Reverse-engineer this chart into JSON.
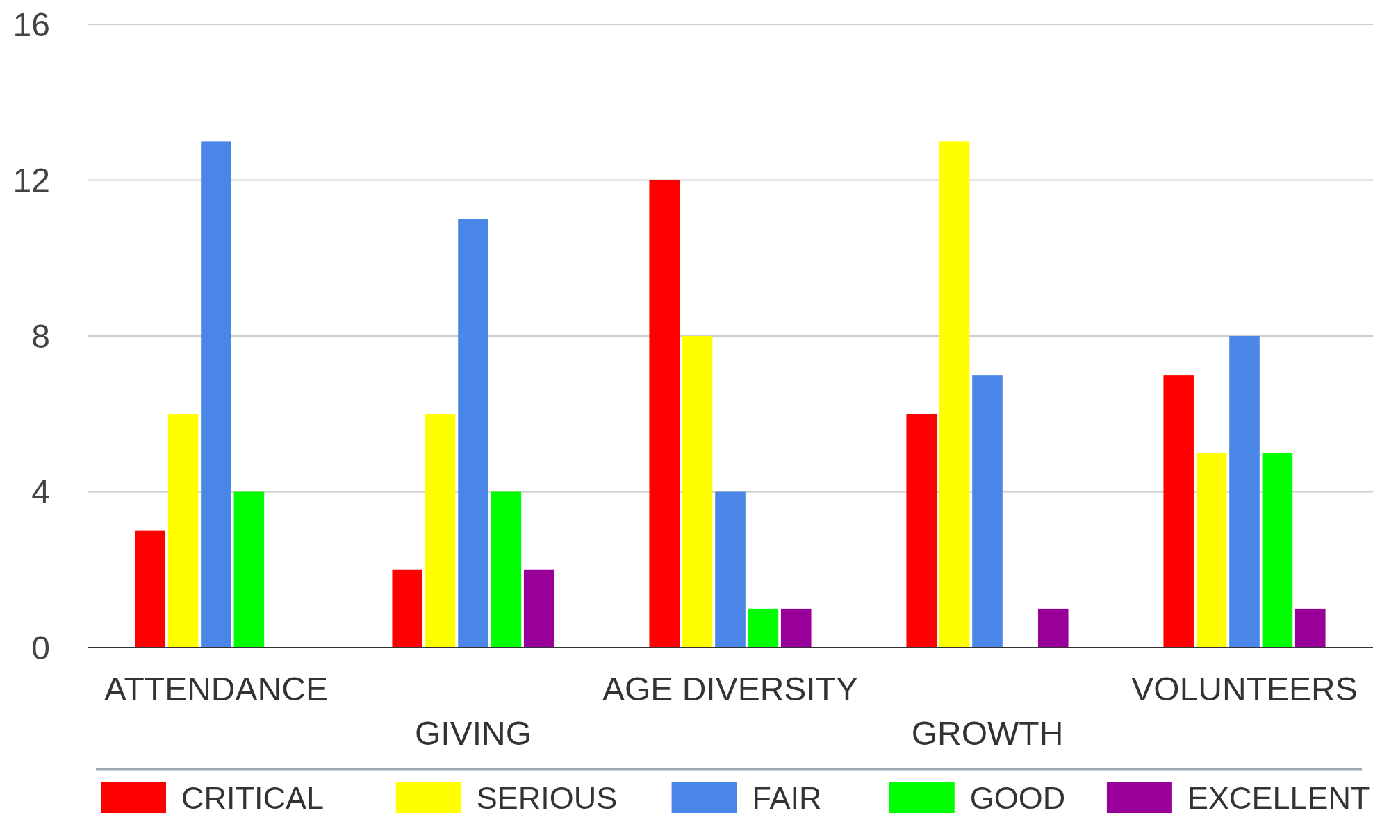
{
  "chart_data": {
    "type": "bar",
    "categories": [
      "ATTENDANCE",
      "GIVING",
      "AGE DIVERSITY",
      "GROWTH",
      "VOLUNTEERS"
    ],
    "series": [
      {
        "name": "CRITICAL",
        "color": "#ff0000",
        "values": [
          3,
          2,
          12,
          6,
          7
        ]
      },
      {
        "name": "SERIOUS",
        "color": "#ffff00",
        "values": [
          6,
          6,
          8,
          13,
          5
        ]
      },
      {
        "name": "FAIR",
        "color": "#4a86e8",
        "values": [
          13,
          11,
          4,
          7,
          8
        ]
      },
      {
        "name": "GOOD",
        "color": "#00ff00",
        "values": [
          4,
          4,
          1,
          0,
          5
        ]
      },
      {
        "name": "EXCELLENT",
        "color": "#990099",
        "values": [
          0,
          2,
          1,
          1,
          1
        ]
      }
    ],
    "ylim": [
      0,
      16
    ],
    "yticks": [
      0,
      4,
      8,
      12,
      16
    ],
    "grid": "y",
    "legend": "bottom"
  }
}
